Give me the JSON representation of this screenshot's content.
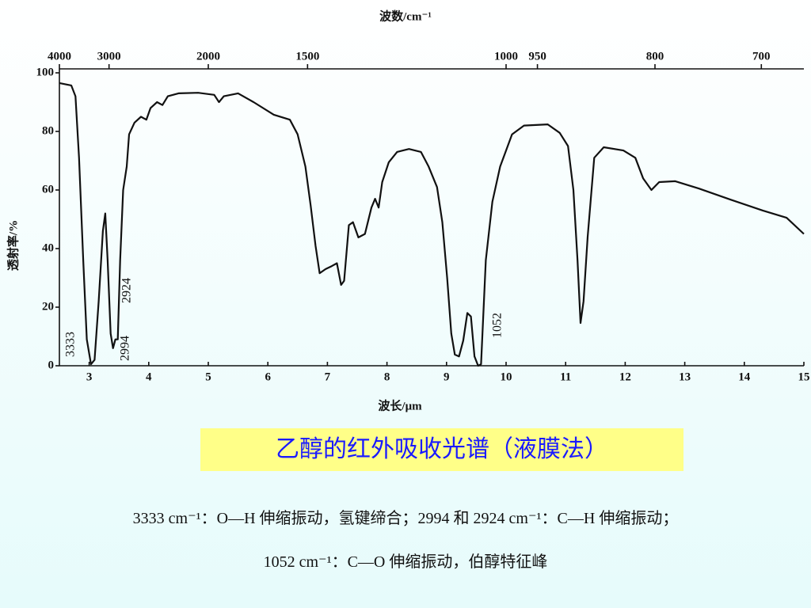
{
  "chart_data": {
    "type": "line",
    "x2label": "波数/cm⁻¹",
    "xlabel": "波长/μm",
    "ylabel": "透射率/%",
    "x": [
      2.5,
      2.7,
      2.77,
      2.83,
      2.9,
      2.96,
      3.03,
      3.09,
      3.16,
      3.23,
      3.27,
      3.31,
      3.36,
      3.4,
      3.44,
      3.48,
      3.52,
      3.57,
      3.63,
      3.67,
      3.76,
      3.87,
      3.96,
      4.03,
      4.14,
      4.23,
      4.32,
      4.5,
      4.83,
      5.1,
      5.18,
      5.26,
      5.5,
      5.76,
      6.1,
      6.37,
      6.5,
      6.63,
      6.72,
      6.8,
      6.87,
      6.97,
      7.07,
      7.16,
      7.23,
      7.28,
      7.36,
      7.43,
      7.52,
      7.63,
      7.74,
      7.8,
      7.86,
      7.92,
      8.03,
      8.17,
      8.37,
      8.57,
      8.7,
      8.84,
      8.93,
      9.01,
      9.08,
      9.14,
      9.21,
      9.28,
      9.35,
      9.41,
      9.47,
      9.53,
      9.58,
      9.66,
      9.77,
      9.9,
      10.1,
      10.3,
      10.7,
      10.9,
      11.04,
      11.13,
      11.2,
      11.25,
      11.3,
      11.37,
      11.48,
      11.64,
      11.97,
      12.17,
      12.3,
      12.44,
      12.57,
      12.84,
      13.24,
      13.77,
      14.31,
      14.71,
      15
    ],
    "values": [
      96.5,
      95.7,
      92,
      71,
      36,
      9,
      0.5,
      2,
      22,
      46,
      52,
      36,
      11,
      6,
      9,
      9,
      36,
      60,
      68,
      79,
      83,
      85,
      84,
      88,
      90,
      89,
      92,
      93,
      93.2,
      92.5,
      90,
      92,
      93,
      90,
      85.7,
      84,
      79,
      68,
      54.6,
      41,
      31.6,
      33,
      34,
      35,
      27.6,
      29,
      48,
      49,
      43.8,
      45,
      54,
      57,
      54,
      62.7,
      69.5,
      73,
      74,
      73,
      68,
      61,
      49,
      30,
      11,
      3.8,
      3.2,
      8.6,
      18,
      16.8,
      3.2,
      0,
      0.5,
      36,
      56,
      68,
      79,
      82,
      82.4,
      79.5,
      75,
      60,
      36,
      14.6,
      22,
      44,
      71,
      74.6,
      73.5,
      71,
      64,
      60,
      62.7,
      63,
      60.5,
      56.7,
      53,
      50.5,
      45
    ],
    "color": "#111111",
    "xlim": [
      2.5,
      15
    ],
    "xticks": [
      3,
      4,
      5,
      6,
      7,
      8,
      9,
      10,
      11,
      12,
      13,
      14,
      15
    ],
    "x2scale": "reciprocal",
    "x2ticks": [
      4000,
      3000,
      2000,
      1500,
      1000,
      950,
      800,
      700
    ],
    "ylim": [
      0,
      100
    ],
    "yticks": [
      0,
      20,
      40,
      60,
      80,
      100
    ],
    "annotations": [
      "3333",
      "2994",
      "2924",
      "1052"
    ]
  },
  "caption": "乙醇的红外吸收光谱（液膜法）",
  "notes": [
    "3333 cm⁻¹：O—H 伸缩振动，氢键缔合；2994 和 2924 cm⁻¹：C—H 伸缩振动；",
    "1052 cm⁻¹：C—O 伸缩振动，伯醇特征峰"
  ]
}
